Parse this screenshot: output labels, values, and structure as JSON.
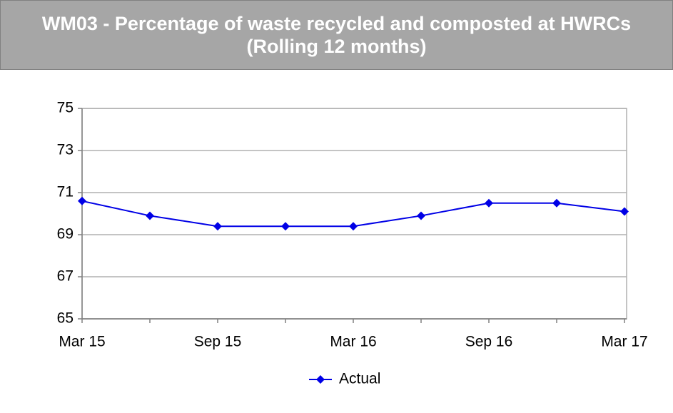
{
  "chart_data": {
    "type": "line",
    "title": "WM03 - Percentage of waste recycled and composted at HWRCs (Rolling 12 months)",
    "categories": [
      "Mar 15",
      null,
      "Sep 15",
      null,
      "Mar 16",
      null,
      "Sep 16",
      null,
      "Mar 17"
    ],
    "series": [
      {
        "name": "Actual",
        "color": "#0000e6",
        "values": [
          70.6,
          69.9,
          69.4,
          69.4,
          69.4,
          69.9,
          70.5,
          70.5,
          70.1
        ]
      }
    ],
    "ylim": [
      65,
      75
    ],
    "yticks": [
      65,
      67,
      69,
      71,
      73,
      75
    ],
    "grid": true,
    "legend": "bottom"
  }
}
